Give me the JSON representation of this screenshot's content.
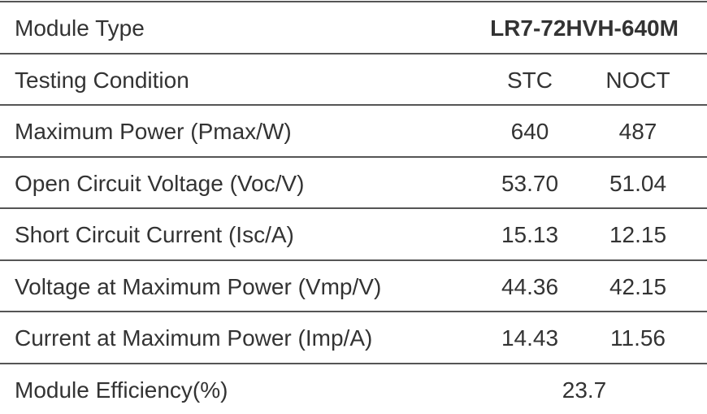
{
  "table": {
    "rows": [
      [
        "Module Type",
        "LR7-72HVH-640M"
      ],
      [
        "Testing Condition",
        "STC",
        "NOCT"
      ],
      [
        "Maximum Power (Pmax/W)",
        "640",
        "487"
      ],
      [
        "Open Circuit Voltage (Voc/V)",
        "53.70",
        "51.04"
      ],
      [
        "Short Circuit Current (Isc/A)",
        "15.13",
        "12.15"
      ],
      [
        "Voltage at Maximum Power (Vmp/V)",
        "44.36",
        "42.15"
      ],
      [
        "Current at Maximum Power (Imp/A)",
        "14.43",
        "11.56"
      ],
      [
        "Module Efficiency(%)",
        "23.7"
      ]
    ]
  }
}
